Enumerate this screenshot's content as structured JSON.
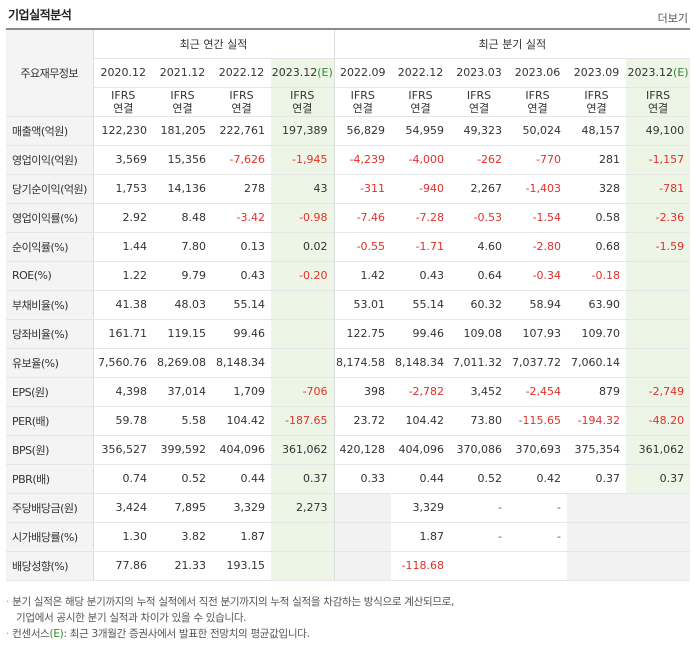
{
  "section": {
    "title": "기업실적분석",
    "more_label": "더보기"
  },
  "header": {
    "corner_label": "주요재무정보",
    "annual_group": "최근 연간 실적",
    "quarter_group": "최근 분기 실적",
    "annual_dates": [
      "2020.12",
      "2021.12",
      "2022.12"
    ],
    "annual_est_date": "2023.12",
    "quarter_dates": [
      "2022.09",
      "2022.12",
      "2023.03",
      "2023.06",
      "2023.09"
    ],
    "quarter_est_date": "2023.12",
    "est_mark": "(E)",
    "ifrs_line1": "IFRS",
    "ifrs_line2": "연결"
  },
  "rows": [
    {
      "label": "매출액(억원)",
      "values": [
        "122,230",
        "181,205",
        "222,761",
        "197,389",
        "56,829",
        "54,959",
        "49,323",
        "50,024",
        "48,157",
        "49,100"
      ]
    },
    {
      "label": "영업이익(억원)",
      "values": [
        "3,569",
        "15,356",
        "-7,626",
        "-1,945",
        "-4,239",
        "-4,000",
        "-262",
        "-770",
        "281",
        "-1,157"
      ]
    },
    {
      "label": "당기순이익(억원)",
      "values": [
        "1,753",
        "14,136",
        "278",
        "43",
        "-311",
        "-940",
        "2,267",
        "-1,403",
        "328",
        "-781"
      ]
    },
    {
      "label": "영업이익률(%)",
      "values": [
        "2.92",
        "8.48",
        "-3.42",
        "-0.98",
        "-7.46",
        "-7.28",
        "-0.53",
        "-1.54",
        "0.58",
        "-2.36"
      ]
    },
    {
      "label": "순이익률(%)",
      "values": [
        "1.44",
        "7.80",
        "0.13",
        "0.02",
        "-0.55",
        "-1.71",
        "4.60",
        "-2.80",
        "0.68",
        "-1.59"
      ]
    },
    {
      "label": "ROE(%)",
      "values": [
        "1.22",
        "9.79",
        "0.43",
        "-0.20",
        "1.42",
        "0.43",
        "0.64",
        "-0.34",
        "-0.18",
        ""
      ]
    },
    {
      "label": "부채비율(%)",
      "values": [
        "41.38",
        "48.03",
        "55.14",
        "",
        "53.01",
        "55.14",
        "60.32",
        "58.94",
        "63.90",
        ""
      ]
    },
    {
      "label": "당좌비율(%)",
      "values": [
        "161.71",
        "119.15",
        "99.46",
        "",
        "122.75",
        "99.46",
        "109.08",
        "107.93",
        "109.70",
        ""
      ]
    },
    {
      "label": "유보율(%)",
      "values": [
        "7,560.76",
        "8,269.08",
        "8,148.34",
        "",
        "8,174.58",
        "8,148.34",
        "7,011.32",
        "7,037.72",
        "7,060.14",
        ""
      ]
    },
    {
      "label": "EPS(원)",
      "values": [
        "4,398",
        "37,014",
        "1,709",
        "-706",
        "398",
        "-2,782",
        "3,452",
        "-2,454",
        "879",
        "-2,749"
      ]
    },
    {
      "label": "PER(배)",
      "values": [
        "59.78",
        "5.58",
        "104.42",
        "-187.65",
        "23.72",
        "104.42",
        "73.80",
        "-115.65",
        "-194.32",
        "-48.20"
      ]
    },
    {
      "label": "BPS(원)",
      "values": [
        "356,527",
        "399,592",
        "404,096",
        "361,062",
        "420,128",
        "404,096",
        "370,086",
        "370,693",
        "375,354",
        "361,062"
      ]
    },
    {
      "label": "PBR(배)",
      "values": [
        "0.74",
        "0.52",
        "0.44",
        "0.37",
        "0.33",
        "0.44",
        "0.52",
        "0.42",
        "0.37",
        "0.37"
      ]
    },
    {
      "label": "주당배당금(원)",
      "values": [
        "3,424",
        "7,895",
        "3,329",
        "2,273",
        "",
        "3,329",
        "-",
        "-",
        "",
        ""
      ]
    },
    {
      "label": "시가배당률(%)",
      "values": [
        "1.30",
        "3.82",
        "1.87",
        "",
        "",
        "1.87",
        "-",
        "-",
        "",
        ""
      ]
    },
    {
      "label": "배당성향(%)",
      "values": [
        "77.86",
        "21.33",
        "193.15",
        "",
        "",
        "-118.68",
        "",
        "",
        "",
        ""
      ]
    }
  ],
  "notes": {
    "line1": "분기 실적은 해당 분기까지의 누적 실적에서 직전 분기까지의 누적 실적을 차감하는 방식으로 계산되므로,",
    "line1b": "기업에서 공시한 분기 실적과 차이가 있을 수 있습니다.",
    "line2_prefix": "컨센서스",
    "line2_mark": "(E)",
    "line2_suffix": ": 최근 3개월간 증권사에서 발표한 전망치의 평균값입니다.",
    "bullet": "·"
  }
}
